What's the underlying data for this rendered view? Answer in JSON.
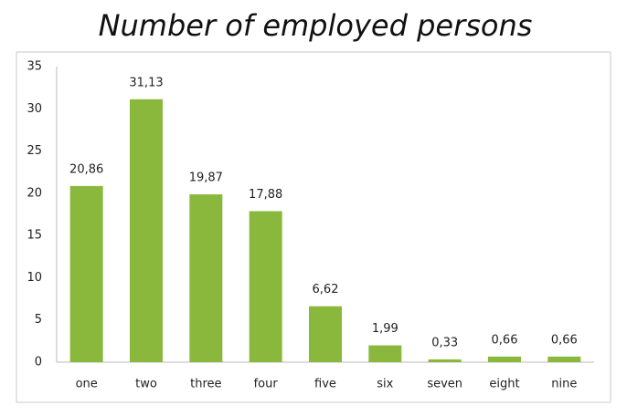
{
  "chart_data": {
    "type": "bar",
    "title": "Number of employed persons",
    "categories": [
      "one",
      "two",
      "three",
      "four",
      "five",
      "six",
      "seven",
      "eight",
      "nine"
    ],
    "values": [
      20.86,
      31.13,
      19.87,
      17.88,
      6.62,
      1.99,
      0.33,
      0.66,
      0.66
    ],
    "value_labels": [
      "20,86",
      "31,13",
      "19,87",
      "17,88",
      "6,62",
      "1,99",
      "0,33",
      "0,66",
      "0,66"
    ],
    "color": "#8ab83c",
    "ylim": [
      0,
      35
    ],
    "yticks": [
      0,
      5,
      10,
      15,
      20,
      25,
      30,
      35
    ],
    "grid": false
  }
}
